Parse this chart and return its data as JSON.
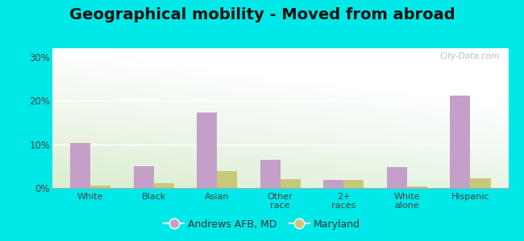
{
  "title": "Geographical mobility - Moved from abroad",
  "categories": [
    "White",
    "Black",
    "Asian",
    "Other\nrace",
    "2+\nraces",
    "White\nalone",
    "Hispanic"
  ],
  "andrews_values": [
    10.3,
    5.0,
    17.3,
    6.5,
    1.8,
    4.8,
    21.2
  ],
  "maryland_values": [
    0.5,
    1.1,
    3.8,
    2.0,
    1.9,
    0.4,
    2.2
  ],
  "andrews_color": "#c4a0c8",
  "maryland_color": "#c8c87a",
  "background_outer": "#00e8e8",
  "ylim": [
    0,
    32
  ],
  "yticks": [
    0,
    10,
    20,
    30
  ],
  "ytick_labels": [
    "0%",
    "10%",
    "20%",
    "30%"
  ],
  "legend_label_andrews": "Andrews AFB, MD",
  "legend_label_maryland": "Maryland",
  "title_fontsize": 14,
  "bar_width": 0.32
}
